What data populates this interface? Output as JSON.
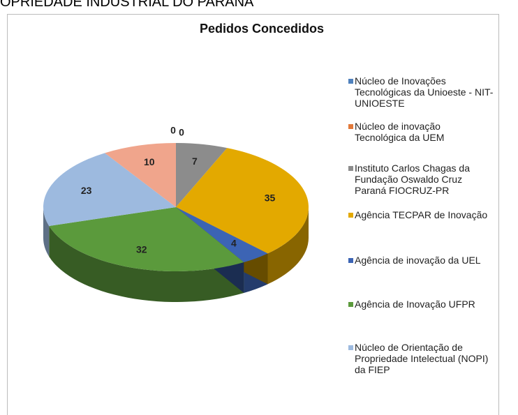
{
  "page_heading": "OPRIEDADE INDUSTRIAL DO PARANÁ",
  "chart_data": {
    "type": "pie3d",
    "title": "Pedidos Concedidos",
    "categories": [
      "Núcleo de Inovações Tecnológicas da Unioeste - NIT-UNIOESTE",
      "Núcleo de inovação Tecnológica da UEM",
      "Instituto Carlos Chagas da Fundação Oswaldo Cruz Paraná FIOCRUZ-PR",
      "Agência TECPAR de Inovação",
      "Agência de inovação da UEL",
      "Agência de Inovação UFPR",
      "Núcleo de Orientação de Propriedade Intelectual (NOPI) da FIEP",
      null
    ],
    "values": [
      0,
      0,
      7,
      35,
      4,
      32,
      23,
      10
    ],
    "colors": [
      "#4f81bd",
      "#e2793a",
      "#8c8c8c",
      "#e3a900",
      "#3c64b4",
      "#5b9a3c",
      "#9dbadf",
      "#f0a58c"
    ],
    "legend": "right"
  }
}
